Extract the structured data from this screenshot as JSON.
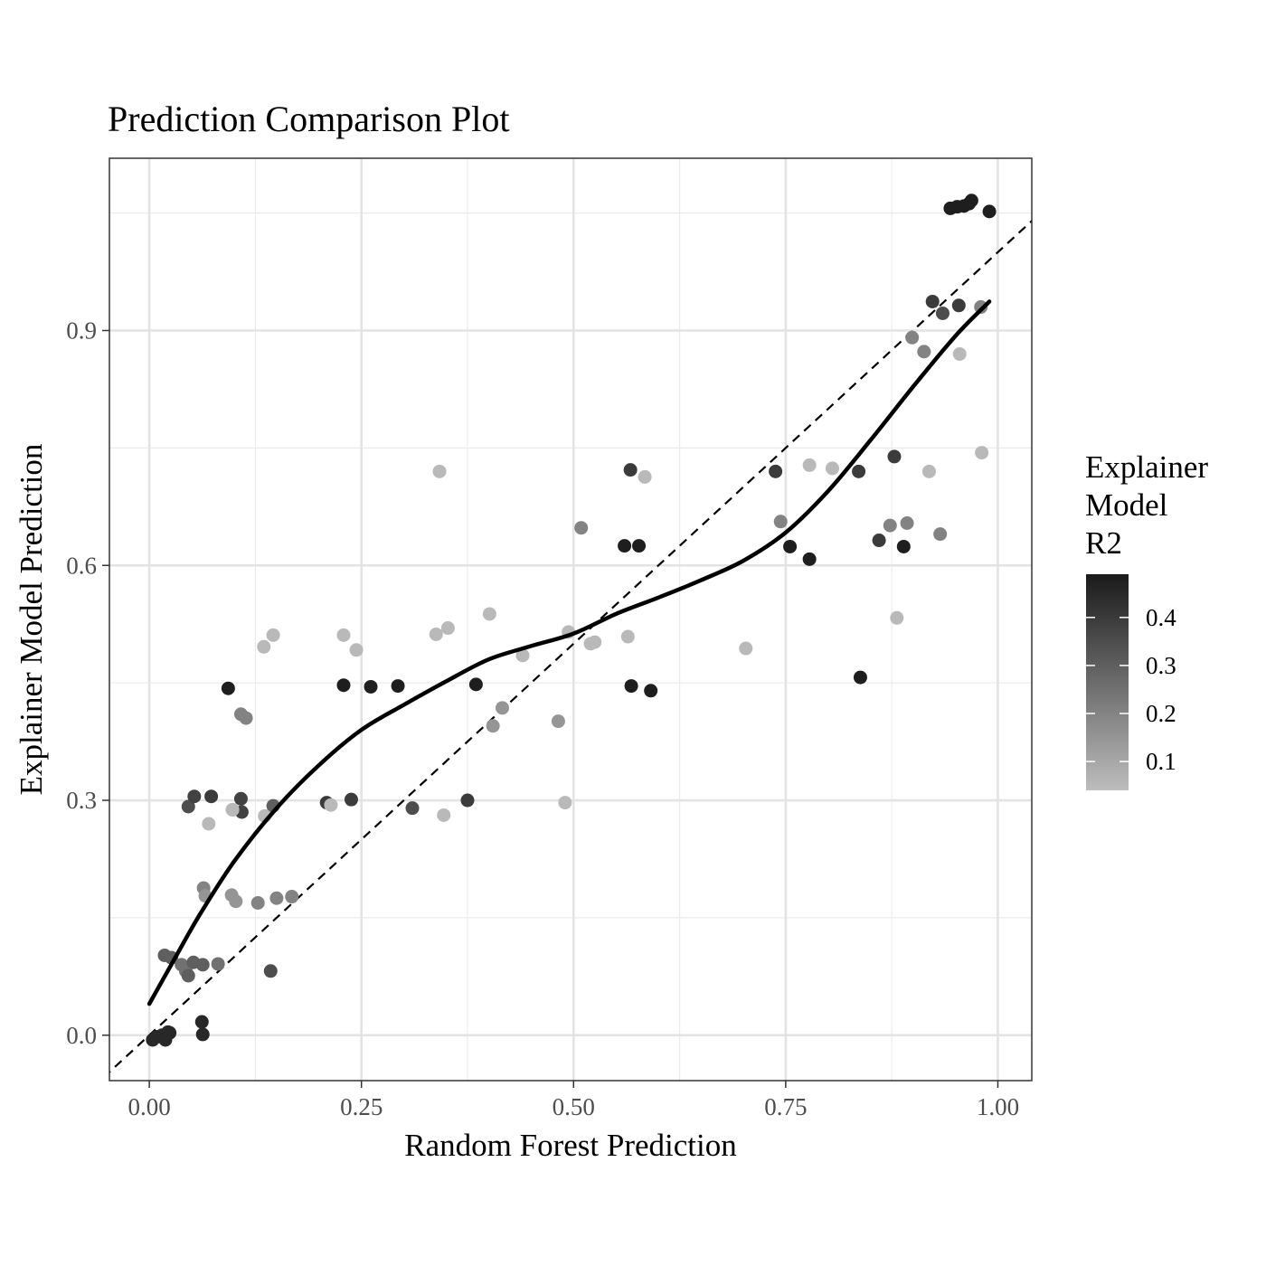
{
  "chart_data": {
    "type": "scatter",
    "title": "Prediction Comparison Plot",
    "xlabel": "Random Forest Prediction",
    "ylabel": "Explainer Model Prediction",
    "xlim": [
      -0.047,
      1.04
    ],
    "ylim": [
      -0.058,
      1.12
    ],
    "x_ticks": [
      0.0,
      0.25,
      0.5,
      0.75,
      1.0
    ],
    "x_tick_labels": [
      "0.00",
      "0.25",
      "0.50",
      "0.75",
      "1.00"
    ],
    "y_ticks": [
      0.0,
      0.3,
      0.6,
      0.9
    ],
    "y_tick_labels": [
      "0.0",
      "0.3",
      "0.6",
      "0.9"
    ],
    "grid": true,
    "theme": "black-and-white",
    "legend": {
      "title_lines": [
        "Explainer",
        "Model",
        "R2"
      ],
      "placement": "right",
      "type": "colorbar",
      "range": [
        0.04,
        0.49
      ],
      "ticks": [
        0.1,
        0.2,
        0.3,
        0.4
      ],
      "tick_labels": [
        "0.1",
        "0.2",
        "0.3",
        "0.4"
      ],
      "color_low": "#bdbdbd",
      "color_high": "#1a1a1a"
    },
    "reference_line": {
      "style": "dashed",
      "slope": 1,
      "intercept": 0,
      "color": "#000000"
    },
    "smooth_line": {
      "style": "solid",
      "color": "#000000",
      "x": [
        0.0,
        0.03,
        0.06,
        0.1,
        0.15,
        0.2,
        0.25,
        0.3,
        0.35,
        0.4,
        0.45,
        0.5,
        0.55,
        0.6,
        0.65,
        0.7,
        0.75,
        0.8,
        0.85,
        0.9,
        0.95,
        0.99
      ],
      "y": [
        0.04,
        0.098,
        0.155,
        0.222,
        0.29,
        0.345,
        0.39,
        0.422,
        0.452,
        0.48,
        0.497,
        0.513,
        0.538,
        0.559,
        0.581,
        0.606,
        0.642,
        0.695,
        0.76,
        0.828,
        0.893,
        0.937
      ]
    },
    "series": [
      {
        "x": [
          0.004,
          0.009,
          0.015,
          0.019,
          0.022,
          0.024,
          0.018,
          0.026,
          0.038,
          0.043,
          0.046,
          0.052,
          0.063,
          0.081,
          0.062,
          0.063,
          0.046,
          0.053,
          0.073,
          0.07,
          0.108,
          0.109,
          0.098,
          0.146,
          0.064,
          0.066,
          0.097,
          0.102,
          0.128,
          0.15,
          0.168,
          0.143,
          0.093,
          0.108,
          0.114,
          0.135,
          0.146,
          0.098,
          0.229,
          0.261,
          0.293,
          0.209,
          0.214,
          0.238,
          0.229,
          0.244,
          0.136,
          0.342,
          0.338,
          0.352,
          0.31,
          0.347,
          0.375,
          0.385,
          0.401,
          0.405,
          0.416,
          0.44,
          0.482,
          0.49,
          0.494,
          0.509,
          0.52,
          0.525,
          0.56,
          0.567,
          0.577,
          0.584,
          0.564,
          0.568,
          0.591,
          0.703,
          0.738,
          0.744,
          0.755,
          0.778,
          0.778,
          0.805,
          0.836,
          0.838,
          0.86,
          0.873,
          0.881,
          0.878,
          0.889,
          0.893,
          0.899,
          0.913,
          0.919,
          0.923,
          0.935,
          0.932,
          0.954,
          0.955,
          0.944,
          0.952,
          0.96,
          0.966,
          0.969,
          0.99,
          0.98,
          0.981
        ],
        "y": [
          -0.006,
          -0.002,
          0.0,
          -0.006,
          0.004,
          0.003,
          0.102,
          0.099,
          0.09,
          0.082,
          0.076,
          0.093,
          0.09,
          0.091,
          0.017,
          0.001,
          0.292,
          0.305,
          0.305,
          0.27,
          0.302,
          0.285,
          0.288,
          0.293,
          0.188,
          0.178,
          0.179,
          0.171,
          0.169,
          0.175,
          0.177,
          0.082,
          0.443,
          0.41,
          0.405,
          0.496,
          0.511,
          0.288,
          0.447,
          0.445,
          0.446,
          0.297,
          0.294,
          0.301,
          0.511,
          0.492,
          0.28,
          0.72,
          0.512,
          0.52,
          0.29,
          0.281,
          0.3,
          0.448,
          0.538,
          0.395,
          0.418,
          0.485,
          0.401,
          0.297,
          0.515,
          0.648,
          0.5,
          0.502,
          0.625,
          0.722,
          0.625,
          0.713,
          0.509,
          0.446,
          0.44,
          0.494,
          0.72,
          0.656,
          0.624,
          0.608,
          0.728,
          0.724,
          0.72,
          0.457,
          0.632,
          0.651,
          0.533,
          0.739,
          0.624,
          0.654,
          0.891,
          0.873,
          0.72,
          0.937,
          0.922,
          0.64,
          0.932,
          0.87,
          1.056,
          1.058,
          1.059,
          1.062,
          1.066,
          1.052,
          0.93,
          0.744
        ],
        "r2": [
          0.45,
          0.45,
          0.45,
          0.45,
          0.45,
          0.45,
          0.3,
          0.3,
          0.25,
          0.25,
          0.3,
          0.3,
          0.3,
          0.25,
          0.45,
          0.45,
          0.35,
          0.38,
          0.4,
          0.05,
          0.38,
          0.38,
          0.06,
          0.3,
          0.2,
          0.15,
          0.15,
          0.15,
          0.2,
          0.2,
          0.2,
          0.35,
          0.48,
          0.2,
          0.2,
          0.05,
          0.05,
          0.05,
          0.48,
          0.48,
          0.48,
          0.4,
          0.05,
          0.4,
          0.05,
          0.05,
          0.05,
          0.05,
          0.05,
          0.05,
          0.35,
          0.05,
          0.4,
          0.48,
          0.05,
          0.15,
          0.15,
          0.05,
          0.15,
          0.05,
          0.05,
          0.2,
          0.05,
          0.05,
          0.48,
          0.4,
          0.48,
          0.05,
          0.05,
          0.48,
          0.48,
          0.05,
          0.4,
          0.2,
          0.48,
          0.48,
          0.05,
          0.05,
          0.4,
          0.48,
          0.4,
          0.2,
          0.05,
          0.4,
          0.48,
          0.2,
          0.2,
          0.2,
          0.05,
          0.4,
          0.35,
          0.2,
          0.4,
          0.05,
          0.48,
          0.48,
          0.48,
          0.48,
          0.48,
          0.48,
          0.2,
          0.05
        ]
      }
    ]
  }
}
